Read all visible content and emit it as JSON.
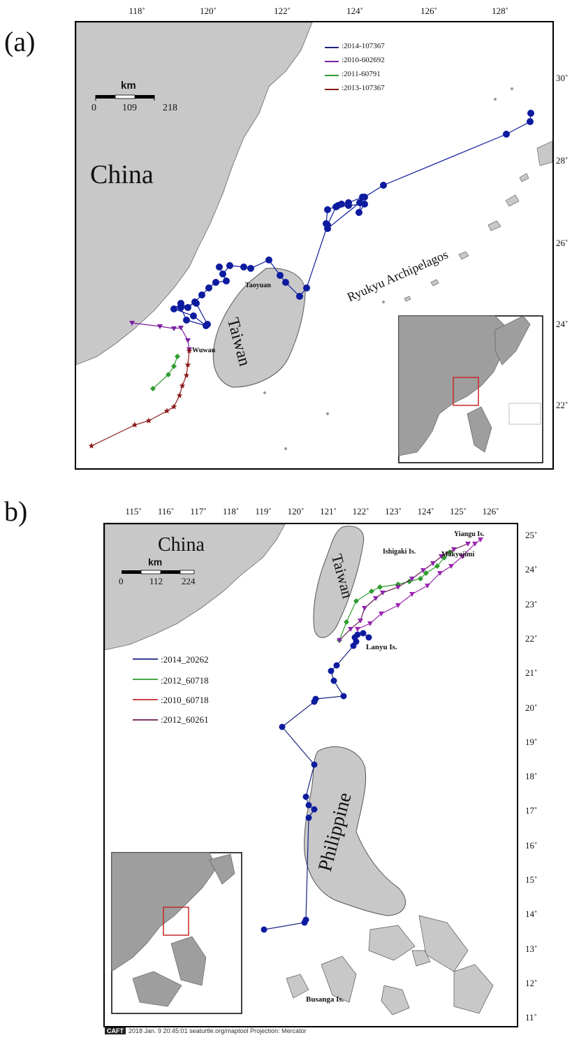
{
  "panel_a": {
    "label": "(a)",
    "lon_ticks": [
      "118˚",
      "120˚",
      "122˚",
      "124˚",
      "126˚",
      "128˚"
    ],
    "lat_ticks": [
      "30˚",
      "28˚",
      "26˚",
      "24˚",
      "22˚"
    ],
    "scale": {
      "unit": "km",
      "marks": [
        "0",
        "109",
        "218"
      ]
    },
    "legend": [
      {
        "label": ":2014-107367",
        "color": "#1a237e"
      },
      {
        "label": ":2010-602692",
        "color": "#7b1fa2"
      },
      {
        "label": ":2011-60791",
        "color": "#2e9c2e"
      },
      {
        "label": ":2013-107367",
        "color": "#8b1a1a"
      }
    ],
    "place_labels": {
      "china": "China",
      "taiwan": "Taiwan",
      "ryukyu": "Ryukyu Archipelagos",
      "taoyuan": "Taoyuan",
      "wuwan": "Wuwan"
    },
    "track_colors": {
      "t2014": "#0d1b9e",
      "t2010": "#7b1fa2",
      "t2011": "#2e9c2e",
      "t2013": "#8b1a1a"
    }
  },
  "panel_b": {
    "label": "b)",
    "lon_ticks": [
      "115˚",
      "116˚",
      "117˚",
      "118˚",
      "119˚",
      "120˚",
      "121˚",
      "122˚",
      "123˚",
      "124˚",
      "125˚",
      "126˚"
    ],
    "lat_ticks": [
      "25˚",
      "24˚",
      "23˚",
      "22˚",
      "21˚",
      "20˚",
      "19˚",
      "18˚",
      "17˚",
      "16˚",
      "15˚",
      "14˚",
      "13˚",
      "12˚",
      "11˚"
    ],
    "scale": {
      "unit": "km",
      "marks": [
        "0",
        "112",
        "224"
      ]
    },
    "legend": [
      {
        "label": ":2014_20262",
        "color": "#1a237e"
      },
      {
        "label": ":2012_60718",
        "color": "#2e9c2e"
      },
      {
        "label": ":2010_60718",
        "color": "#c62828"
      },
      {
        "label": ":2012_60261",
        "color": "#6a1b4d"
      }
    ],
    "place_labels": {
      "china": "China",
      "taiwan": "Taiwan",
      "philippine": "Philippine",
      "yiangu": "Yiangu Is.",
      "ishigaki": "Ishigaki Is.",
      "makyojima": "Makyojimi",
      "lanyu": "Lanyu Is.",
      "busanga": "Busanga Is."
    },
    "footer": {
      "logo": "CAFT",
      "text": "2018 Jan. 9 20:45:01  seaturtle.org/maptool Projection: Mercator"
    }
  }
}
